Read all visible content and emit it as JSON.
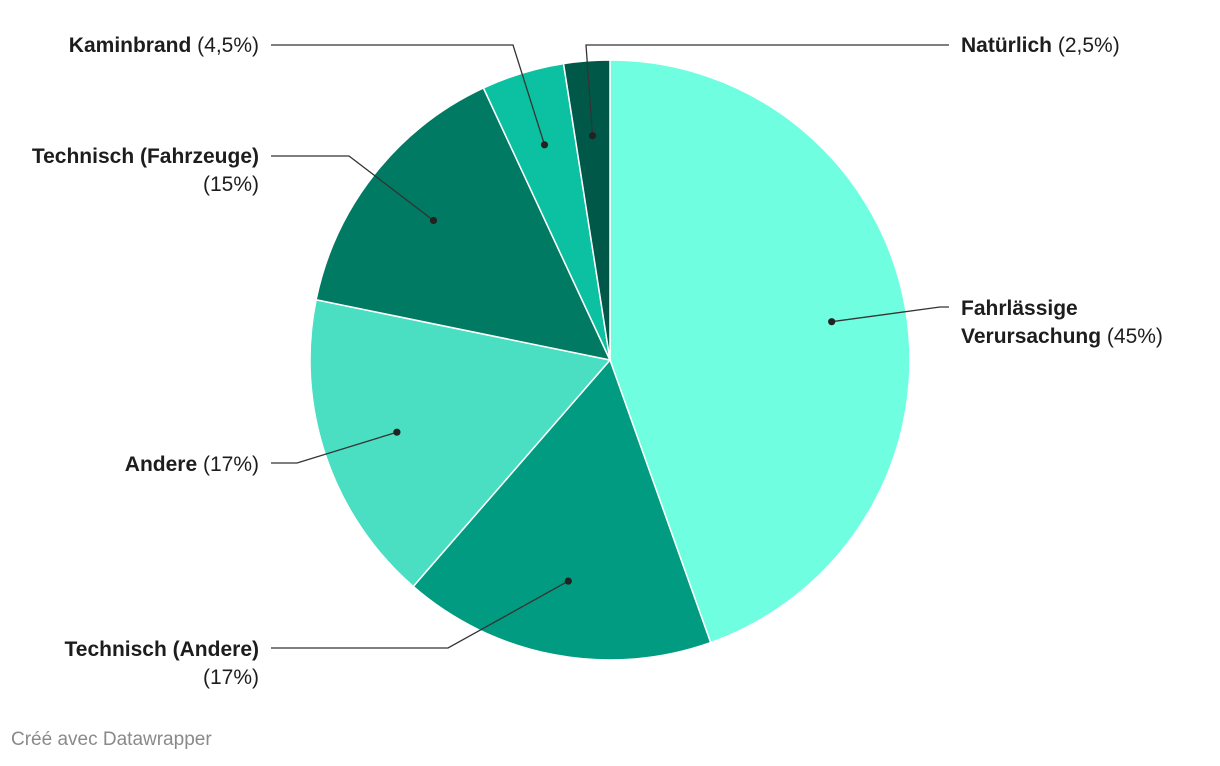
{
  "chart_data": {
    "type": "pie",
    "title": "",
    "slices": [
      {
        "name": "Fahrlässige Verursachung",
        "pct_label": "(45%)",
        "value": 45,
        "color": "#6fffe0"
      },
      {
        "name": "Technisch (Andere)",
        "pct_label": "(17%)",
        "value": 17,
        "color": "#009b80"
      },
      {
        "name": "Andere",
        "pct_label": "(17%)",
        "value": 17,
        "color": "#4adfc2"
      },
      {
        "name": "Technisch (Fahrzeuge)",
        "pct_label": "(15%)",
        "value": 15,
        "color": "#007a62"
      },
      {
        "name": "Kaminbrand",
        "pct_label": "(4,5%)",
        "value": 4.5,
        "color": "#0cc1a2"
      },
      {
        "name": "Natürlich",
        "pct_label": "(2,5%)",
        "value": 2.5,
        "color": "#005848"
      }
    ]
  },
  "footer": {
    "credit": "Créé avec Datawrapper"
  }
}
